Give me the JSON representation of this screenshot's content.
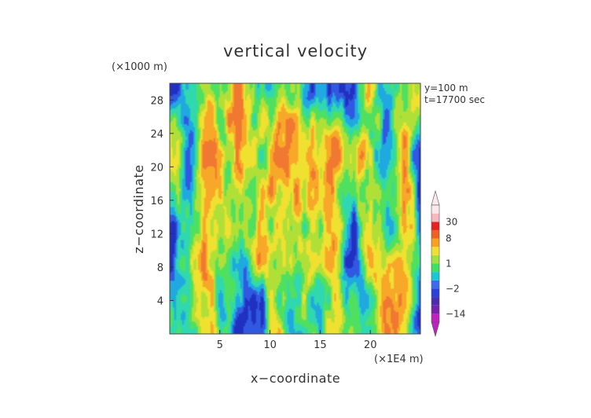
{
  "chart_data": {
    "type": "heatmap",
    "title": "vertical velocity",
    "xlabel": "x−coordinate",
    "ylabel": "z−coordinate",
    "x_unit": "(×1E4 m)",
    "y_unit": "(×1000 m)",
    "info_lines": [
      "y=100 m",
      "t=17700 sec"
    ],
    "x_ticks": [
      5,
      10,
      15,
      20
    ],
    "y_ticks": [
      4,
      8,
      12,
      16,
      20,
      24,
      28
    ],
    "xlim": [
      0,
      25
    ],
    "ylim": [
      0,
      30
    ],
    "colorbar": {
      "labels": [
        {
          "text": "30",
          "value": 30
        },
        {
          "text": "8",
          "value": 8
        },
        {
          "text": "1",
          "value": 1
        },
        {
          "text": "−2",
          "value": -2
        },
        {
          "text": "−14",
          "value": -14
        }
      ],
      "levels": [
        -30,
        -14,
        -8,
        -4,
        -2,
        -1,
        0,
        1,
        2,
        4,
        8,
        14,
        30
      ],
      "colors": [
        "#c020c0",
        "#7a20b0",
        "#4a2cb0",
        "#2a40d8",
        "#3a6cf0",
        "#18c8d8",
        "#40e060",
        "#a0e040",
        "#f0e030",
        "#f8a020",
        "#f06020",
        "#e82020",
        "#f8b8c0",
        "#fbe8ec"
      ]
    },
    "field_palette": [
      "#2030c0",
      "#3058e0",
      "#20a8e0",
      "#30d8b0",
      "#50e060",
      "#b0e038",
      "#f0e030",
      "#f8a828",
      "#f07830"
    ]
  }
}
